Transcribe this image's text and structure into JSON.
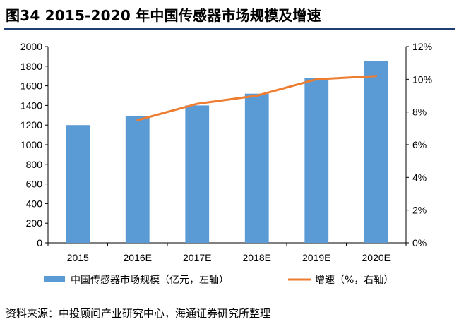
{
  "title": "图34 2015-2020 年中国传感器市场规模及增速",
  "source": "资料来源：中投顾问产业研究中心，海通证券研究所整理",
  "chart_data": {
    "type": "bar",
    "categories": [
      "2015",
      "2016E",
      "2017E",
      "2018E",
      "2019E",
      "2020E"
    ],
    "series": [
      {
        "name": "中国传感器市场规模（亿元，左轴）",
        "type": "bar",
        "axis": "left",
        "color": "#5b9bd5",
        "values": [
          1200,
          1290,
          1400,
          1520,
          1680,
          1850
        ]
      },
      {
        "name": "增速（%，右轴）",
        "type": "line",
        "axis": "right",
        "color": "#ed7d31",
        "values": [
          null,
          7.5,
          8.5,
          9.0,
          10.0,
          10.2
        ]
      }
    ],
    "y_left": {
      "lim": [
        0,
        2000
      ],
      "ticks": [
        "0",
        "200",
        "400",
        "600",
        "800",
        "1000",
        "1200",
        "1400",
        "1600",
        "1800",
        "2000"
      ]
    },
    "y_right": {
      "lim": [
        0,
        12
      ],
      "ticks": [
        "0%",
        "2%",
        "4%",
        "6%",
        "8%",
        "10%",
        "12%"
      ]
    },
    "grid": false,
    "legend_position": "bottom"
  }
}
